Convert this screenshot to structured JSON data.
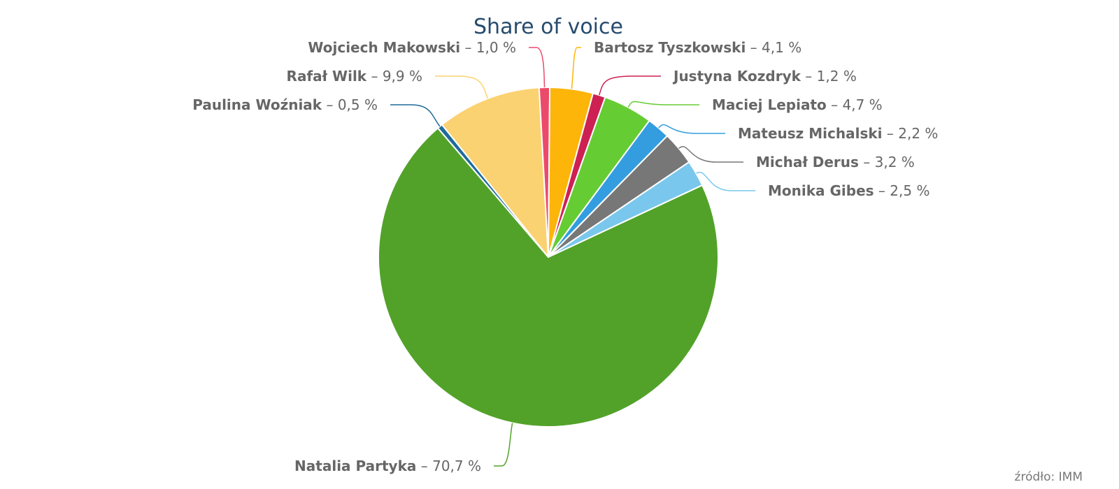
{
  "chart_data": {
    "type": "pie",
    "title": "Share of voice",
    "legend": "none",
    "data_labels": "outside",
    "separator": " – ",
    "unit": " %",
    "slices": [
      {
        "name": "Natalia Partyka",
        "value": 70.7,
        "label": "70,7",
        "color": "#52a22a"
      },
      {
        "name": "Paulina Woźniak",
        "value": 0.5,
        "label": "0,5",
        "color": "#1f6b99"
      },
      {
        "name": "Rafał Wilk",
        "value": 9.9,
        "label": "9,9",
        "color": "#fbd271"
      },
      {
        "name": "Wojciech Makowski",
        "value": 1.0,
        "label": "1,0",
        "color": "#ec4a6b"
      },
      {
        "name": "Bartosz Tyszkowski",
        "value": 4.1,
        "label": "4,1",
        "color": "#fdb50a"
      },
      {
        "name": "Justyna Kozdryk",
        "value": 1.2,
        "label": "1,2",
        "color": "#cc2152"
      },
      {
        "name": "Maciej Lepiato",
        "value": 4.7,
        "label": "4,7",
        "color": "#66cc33"
      },
      {
        "name": "Mateusz Michalski",
        "value": 2.2,
        "label": "2,2",
        "color": "#339de0"
      },
      {
        "name": "Michał Derus",
        "value": 3.2,
        "label": "3,2",
        "color": "#777777"
      },
      {
        "name": "Monika Gibes",
        "value": 2.5,
        "label": "2,5",
        "color": "#79c7ec"
      }
    ]
  },
  "credits": "źródło: IMM"
}
